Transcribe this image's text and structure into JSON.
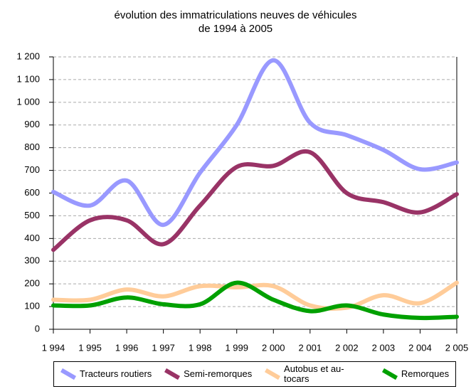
{
  "chart_data": {
    "type": "line",
    "title": [
      "évolution des immatriculations neuves de véhicules",
      "de 1994 à 2005"
    ],
    "x": [
      1994,
      1995,
      1996,
      1997,
      1998,
      1999,
      2000,
      2001,
      2002,
      2003,
      2004,
      2005
    ],
    "xlim": [
      1994,
      2005
    ],
    "xticks": [
      {
        "value": 1994,
        "label": "1 994"
      },
      {
        "value": 1995,
        "label": "1 995"
      },
      {
        "value": 1996,
        "label": "1 996"
      },
      {
        "value": 1997,
        "label": "1 997"
      },
      {
        "value": 1998,
        "label": "1 998"
      },
      {
        "value": 1999,
        "label": "1 999"
      },
      {
        "value": 2000,
        "label": "2 000"
      },
      {
        "value": 2001,
        "label": "2 001"
      },
      {
        "value": 2002,
        "label": "2 002"
      },
      {
        "value": 2003,
        "label": "2 003"
      },
      {
        "value": 2004,
        "label": "2 004"
      },
      {
        "value": 2005,
        "label": "2 005"
      }
    ],
    "ylim": [
      0,
      1200
    ],
    "yticks": [
      0,
      100,
      200,
      300,
      400,
      500,
      600,
      700,
      800,
      900,
      {
        "value": 1000,
        "label": "1 000"
      },
      {
        "value": 1100,
        "label": "1 100"
      },
      {
        "value": 1200,
        "label": "1 200"
      }
    ],
    "grid": true,
    "series": [
      {
        "name": "Tracteurs routiers",
        "color": "#9999ff",
        "values": [
          605,
          545,
          655,
          460,
          690,
          900,
          1185,
          910,
          855,
          790,
          705,
          735
        ]
      },
      {
        "name": "Semi-remorques",
        "color": "#993366",
        "values": [
          350,
          480,
          480,
          375,
          545,
          715,
          720,
          780,
          600,
          560,
          515,
          595
        ]
      },
      {
        "name": "Autobus et au- tocars",
        "color": "#ffcc99",
        "values": [
          130,
          130,
          175,
          145,
          190,
          185,
          190,
          105,
          95,
          150,
          115,
          205
        ]
      },
      {
        "name": "Remorques",
        "color": "#00a000",
        "values": [
          105,
          105,
          140,
          110,
          110,
          205,
          130,
          80,
          105,
          65,
          50,
          55
        ]
      }
    ]
  }
}
